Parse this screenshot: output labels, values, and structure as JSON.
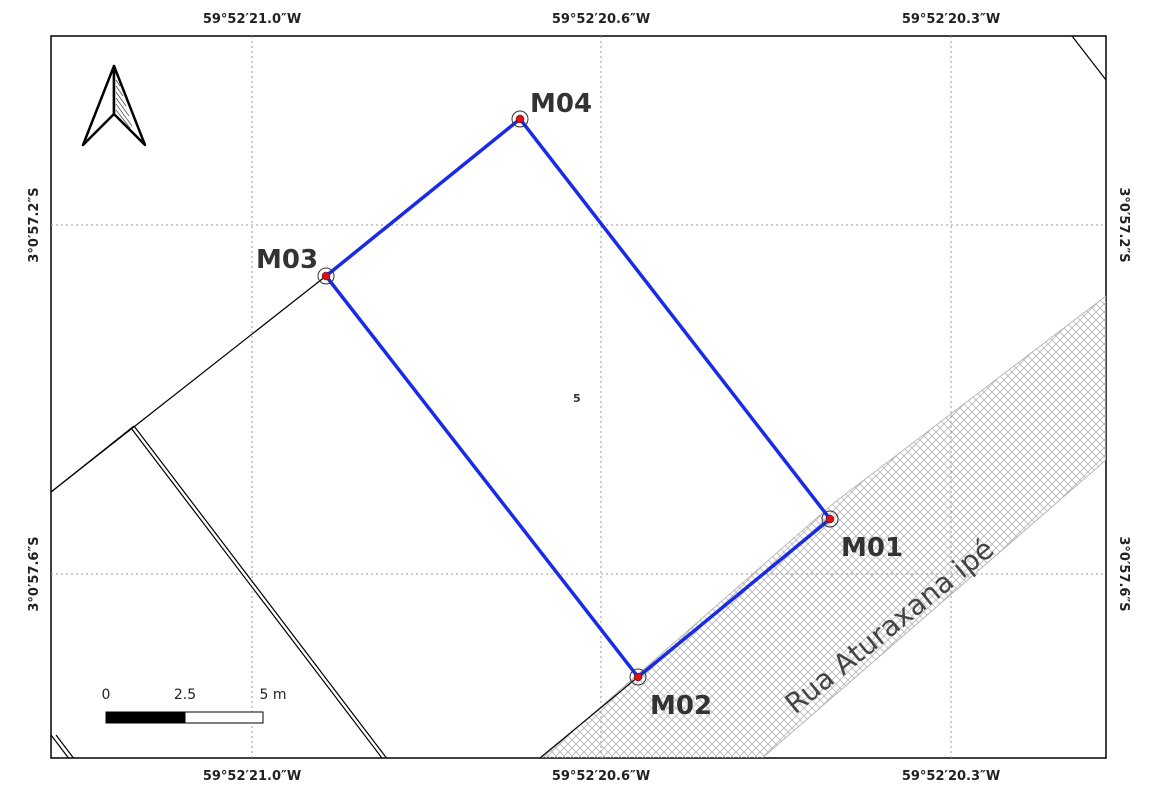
{
  "grid": {
    "lon_top": [
      "59°52′21.0″W",
      "59°52′20.6″W",
      "59°52′20.3″W"
    ],
    "lon_bottom": [
      "59°52′21.0″W",
      "59°52′20.6″W",
      "59°52′20.3″W"
    ],
    "lat_left": [
      "3°0′57.2″S",
      "3°0′57.6″S"
    ],
    "lat_right": [
      "3°0′57.2″S",
      "3°0′57.6″S"
    ]
  },
  "vertices": [
    {
      "label": "M01"
    },
    {
      "label": "M02"
    },
    {
      "label": "M03"
    },
    {
      "label": "M04"
    }
  ],
  "lot_number": "5",
  "road": {
    "name": "Rua Aturaxana ipé"
  },
  "scale_bar": {
    "ticks": [
      "0",
      "2.5",
      "5 m"
    ]
  },
  "north_arrow": {
    "icon": "north-arrow-icon"
  },
  "colors": {
    "boundary": "#1a2be6",
    "vertex_fill": "#e01010",
    "road_hatch": "#b0b0b0",
    "grid": "#999999"
  }
}
